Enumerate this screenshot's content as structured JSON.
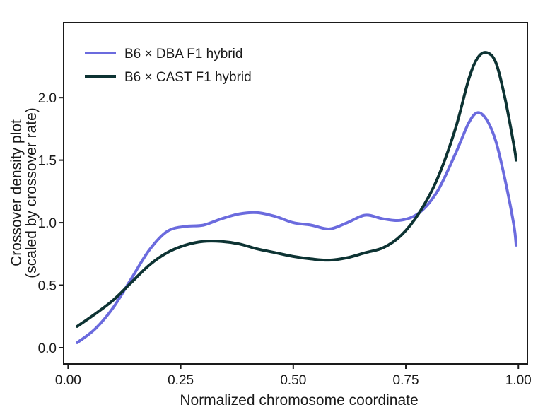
{
  "chart_data": {
    "type": "line",
    "xlabel": "Normalized chromosome coordinate",
    "ylabel_lines": [
      "Crossover density plot",
      "(scaled by crossover rate)"
    ],
    "xlim": [
      -0.01,
      1.02
    ],
    "ylim": [
      -0.13,
      2.6
    ],
    "x_ticks": [
      0.0,
      0.25,
      0.5,
      0.75,
      1.0
    ],
    "x_tick_labels": [
      "0.00",
      "0.25",
      "0.50",
      "0.75",
      "1.00"
    ],
    "y_ticks": [
      0.0,
      0.5,
      1.0,
      1.5,
      2.0
    ],
    "y_tick_labels": [
      "0.0",
      "0.5",
      "1.0",
      "1.5",
      "2.0"
    ],
    "grid": false,
    "legend_position": "top-left",
    "series": [
      {
        "name": "B6 × DBA F1 hybrid",
        "color": "#6b6bde",
        "x": [
          0.02,
          0.06,
          0.1,
          0.14,
          0.18,
          0.22,
          0.26,
          0.3,
          0.34,
          0.38,
          0.42,
          0.46,
          0.5,
          0.54,
          0.58,
          0.62,
          0.66,
          0.7,
          0.74,
          0.78,
          0.82,
          0.86,
          0.89,
          0.91,
          0.93,
          0.95,
          0.97,
          0.99,
          0.995
        ],
        "y": [
          0.04,
          0.15,
          0.32,
          0.55,
          0.78,
          0.93,
          0.97,
          0.98,
          1.03,
          1.07,
          1.08,
          1.05,
          1.0,
          0.98,
          0.95,
          1.0,
          1.06,
          1.03,
          1.02,
          1.08,
          1.25,
          1.55,
          1.8,
          1.88,
          1.82,
          1.65,
          1.35,
          0.98,
          0.82
        ]
      },
      {
        "name": "B6 × CAST F1 hybrid",
        "color": "#0d3333",
        "x": [
          0.02,
          0.06,
          0.1,
          0.14,
          0.18,
          0.22,
          0.26,
          0.3,
          0.34,
          0.38,
          0.42,
          0.46,
          0.5,
          0.54,
          0.58,
          0.62,
          0.66,
          0.7,
          0.74,
          0.78,
          0.82,
          0.86,
          0.89,
          0.91,
          0.93,
          0.95,
          0.97,
          0.99,
          0.995
        ],
        "y": [
          0.17,
          0.27,
          0.38,
          0.52,
          0.66,
          0.76,
          0.82,
          0.85,
          0.85,
          0.83,
          0.79,
          0.76,
          0.73,
          0.71,
          0.7,
          0.72,
          0.76,
          0.8,
          0.9,
          1.08,
          1.35,
          1.75,
          2.15,
          2.32,
          2.36,
          2.28,
          2.0,
          1.62,
          1.5
        ]
      }
    ]
  }
}
